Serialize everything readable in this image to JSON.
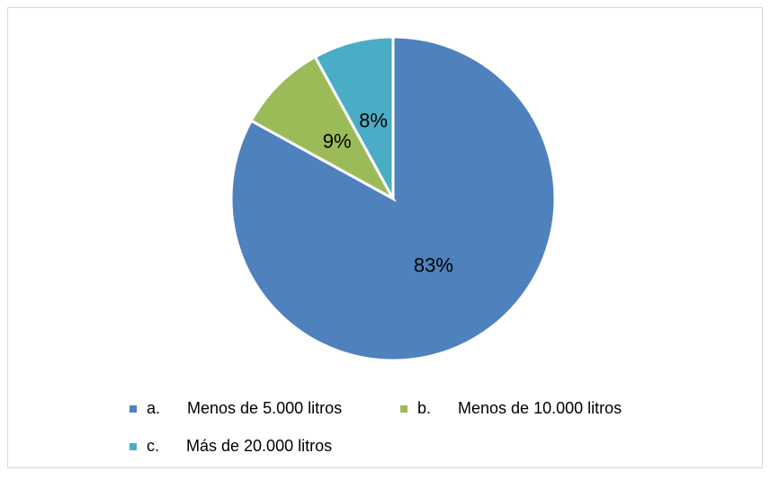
{
  "chart_data": {
    "type": "pie",
    "categories": [
      "a.      Menos de 5.000 litros",
      "b.      Menos de 10.000 litros",
      "c.      Más de 20.000 litros"
    ],
    "values": [
      83,
      9,
      8
    ],
    "value_labels": [
      "83%",
      "9%",
      "8%"
    ],
    "colors": [
      "#4f81bd",
      "#9bbb59",
      "#4bacc6"
    ],
    "legend": "bottom"
  }
}
